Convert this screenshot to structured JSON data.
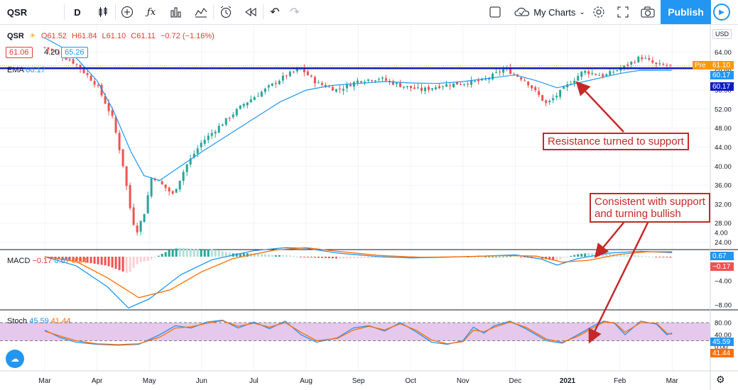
{
  "toolbar": {
    "symbol": "QSR",
    "interval": "D",
    "my_charts": "My Charts",
    "publish": "Publish",
    "icons": [
      "candles-icon",
      "add-icon",
      "fx-icon",
      "bars-icon",
      "indicators-icon",
      "alert-icon",
      "replay-icon",
      "undo-icon",
      "redo-icon",
      "layout-icon",
      "cloud-icon",
      "gear-icon",
      "fullscreen-icon",
      "camera-icon",
      "play-icon"
    ]
  },
  "legend": {
    "symbol": "QSR",
    "o": "O61.52",
    "h": "H61.84",
    "l": "L61.10",
    "c": "C61.11",
    "change": "−0.72 (−1.16%)",
    "bid": "61.06",
    "spread": "4.20",
    "ask": "65.26",
    "ema_label": "EMA",
    "ema_value": "60.17"
  },
  "macd_legend": {
    "label": "MACD",
    "v1": "−0.17",
    "v2": "0.67",
    "v3": "0.84"
  },
  "stoch_legend": {
    "label": "Stoch",
    "v1": "45.59",
    "v2": "41.44"
  },
  "axis": {
    "currency": "USD",
    "price_tag_pre": "Pre",
    "price_tag": "61.10",
    "ema_tag1": "60.17",
    "ema_tag2": "60.17",
    "macd_tag1": "0.67",
    "macd_tag2": "−0.17",
    "stoch_tag1": "45.59",
    "stoch_tag2": "41.44"
  },
  "annotations": {
    "support": "Resistance turned to support",
    "bullish_line1": "Consistent with support",
    "bullish_line2": "and turning bullish"
  },
  "colors": {
    "up": "#26a69a",
    "down": "#ef5350",
    "ema": "#2196f3",
    "resistance": "#0d1bc7",
    "signal": "#ff6d00",
    "stoch_fill": "#e1bee7",
    "annot": "#c62828"
  },
  "chart_data": [
    {
      "type": "candlestick",
      "yticks": [
        "64.00",
        "60.00",
        "56.00",
        "52.00",
        "48.00",
        "44.00",
        "40.00",
        "36.00",
        "32.00",
        "28.00",
        "24.00"
      ],
      "xticks": [
        "Mar",
        "Apr",
        "May",
        "Jun",
        "Jul",
        "Aug",
        "Sep",
        "Oct",
        "Nov",
        "Dec",
        "2021",
        "Feb",
        "Mar"
      ],
      "ylim": [
        22,
        67
      ],
      "resistance_level": 60.6,
      "close_path": [
        [
          0,
          65
        ],
        [
          0.3,
          63.5
        ],
        [
          0.6,
          61.5
        ],
        [
          1.0,
          57
        ],
        [
          1.3,
          50
        ],
        [
          1.5,
          40
        ],
        [
          1.65,
          30
        ],
        [
          1.75,
          26
        ],
        [
          1.9,
          30
        ],
        [
          2.05,
          38
        ],
        [
          2.25,
          36
        ],
        [
          2.45,
          34
        ],
        [
          2.7,
          40
        ],
        [
          3.0,
          45
        ],
        [
          3.4,
          49
        ],
        [
          3.8,
          53
        ],
        [
          4.2,
          56
        ],
        [
          4.6,
          59
        ],
        [
          4.9,
          60.5
        ],
        [
          5.2,
          57.5
        ],
        [
          5.6,
          56
        ],
        [
          6.0,
          58
        ],
        [
          6.4,
          58.5
        ],
        [
          6.8,
          57
        ],
        [
          7.2,
          56
        ],
        [
          7.6,
          57
        ],
        [
          8.0,
          57.5
        ],
        [
          8.4,
          58
        ],
        [
          8.8,
          60.5
        ],
        [
          9.2,
          58
        ],
        [
          9.6,
          53
        ],
        [
          9.9,
          56
        ],
        [
          10.3,
          60
        ],
        [
          10.7,
          59
        ],
        [
          11.1,
          61
        ],
        [
          11.4,
          63
        ],
        [
          11.7,
          61.3
        ],
        [
          12.0,
          61.1
        ]
      ],
      "ema_path": [
        [
          0,
          67
        ],
        [
          0.5,
          64
        ],
        [
          1.0,
          58
        ],
        [
          1.3,
          52
        ],
        [
          1.65,
          43
        ],
        [
          1.9,
          38
        ],
        [
          2.2,
          37
        ],
        [
          2.6,
          40
        ],
        [
          3.0,
          43
        ],
        [
          3.5,
          46.5
        ],
        [
          4.0,
          50
        ],
        [
          4.5,
          53.5
        ],
        [
          5.0,
          56
        ],
        [
          5.5,
          57
        ],
        [
          6.0,
          57.4
        ],
        [
          6.5,
          57.8
        ],
        [
          7.0,
          57.5
        ],
        [
          7.5,
          57.4
        ],
        [
          8.0,
          57.8
        ],
        [
          8.5,
          58.5
        ],
        [
          9.0,
          59.2
        ],
        [
          9.4,
          58
        ],
        [
          9.8,
          56.5
        ],
        [
          10.2,
          57.5
        ],
        [
          10.6,
          58.5
        ],
        [
          11.0,
          59.5
        ],
        [
          11.4,
          60.2
        ],
        [
          12.0,
          60.17
        ]
      ]
    },
    {
      "type": "histogram",
      "name": "MACD",
      "yticks": [
        "4.00",
        "0.00",
        "−4.00",
        "−8.00"
      ],
      "ylim": [
        -9,
        3
      ],
      "macd_path": [
        [
          0,
          0
        ],
        [
          0.6,
          -1.5
        ],
        [
          1.2,
          -5
        ],
        [
          1.6,
          -8.5
        ],
        [
          2.0,
          -7
        ],
        [
          2.6,
          -3
        ],
        [
          3.2,
          -0.5
        ],
        [
          4.0,
          1
        ],
        [
          4.6,
          1.5
        ],
        [
          5.0,
          1.4
        ],
        [
          5.6,
          0.6
        ],
        [
          6.4,
          0
        ],
        [
          7.0,
          -0.2
        ],
        [
          7.6,
          -0.1
        ],
        [
          8.4,
          0.1
        ],
        [
          9.0,
          0.3
        ],
        [
          9.5,
          -0.4
        ],
        [
          9.8,
          -1.4
        ],
        [
          10.2,
          -0.3
        ],
        [
          10.8,
          0.6
        ],
        [
          11.4,
          0.9
        ],
        [
          12.0,
          0.67
        ]
      ],
      "signal_path": [
        [
          0,
          0
        ],
        [
          0.6,
          -0.8
        ],
        [
          1.2,
          -3.5
        ],
        [
          1.8,
          -6.8
        ],
        [
          2.4,
          -5.5
        ],
        [
          3.0,
          -2.5
        ],
        [
          3.6,
          -0.3
        ],
        [
          4.4,
          1.1
        ],
        [
          5.0,
          1.5
        ],
        [
          5.6,
          0.9
        ],
        [
          6.4,
          0.2
        ],
        [
          7.2,
          -0.1
        ],
        [
          8.0,
          0
        ],
        [
          8.8,
          0.2
        ],
        [
          9.4,
          0.1
        ],
        [
          9.9,
          -0.9
        ],
        [
          10.4,
          -0.6
        ],
        [
          11.0,
          0.4
        ],
        [
          11.5,
          0.8
        ],
        [
          12.0,
          0.84
        ]
      ]
    },
    {
      "type": "line",
      "name": "Stoch",
      "yticks": [
        "80.00",
        "40.00",
        "0.00"
      ],
      "ylim": [
        0,
        100
      ],
      "band": [
        20,
        80
      ],
      "k": [
        [
          0,
          55
        ],
        [
          0.3,
          30
        ],
        [
          0.6,
          15
        ],
        [
          1.0,
          8
        ],
        [
          1.4,
          5
        ],
        [
          1.8,
          8
        ],
        [
          2.2,
          40
        ],
        [
          2.5,
          70
        ],
        [
          2.8,
          62
        ],
        [
          3.1,
          82
        ],
        [
          3.4,
          88
        ],
        [
          3.7,
          62
        ],
        [
          4.0,
          82
        ],
        [
          4.3,
          60
        ],
        [
          4.6,
          85
        ],
        [
          4.9,
          40
        ],
        [
          5.2,
          15
        ],
        [
          5.6,
          30
        ],
        [
          5.9,
          62
        ],
        [
          6.2,
          70
        ],
        [
          6.5,
          52
        ],
        [
          6.8,
          80
        ],
        [
          7.1,
          50
        ],
        [
          7.4,
          15
        ],
        [
          7.7,
          8
        ],
        [
          8.0,
          20
        ],
        [
          8.2,
          65
        ],
        [
          8.4,
          45
        ],
        [
          8.6,
          70
        ],
        [
          8.9,
          85
        ],
        [
          9.2,
          60
        ],
        [
          9.6,
          20
        ],
        [
          9.9,
          12
        ],
        [
          10.2,
          40
        ],
        [
          10.5,
          70
        ],
        [
          10.7,
          85
        ],
        [
          10.9,
          78
        ],
        [
          11.1,
          40
        ],
        [
          11.4,
          85
        ],
        [
          11.7,
          75
        ],
        [
          11.9,
          40
        ],
        [
          12.0,
          45.59
        ]
      ],
      "d": [
        [
          0,
          52
        ],
        [
          0.3,
          35
        ],
        [
          0.6,
          20
        ],
        [
          1.0,
          10
        ],
        [
          1.4,
          7
        ],
        [
          1.8,
          10
        ],
        [
          2.2,
          32
        ],
        [
          2.5,
          62
        ],
        [
          2.8,
          66
        ],
        [
          3.1,
          78
        ],
        [
          3.4,
          86
        ],
        [
          3.7,
          68
        ],
        [
          4.0,
          78
        ],
        [
          4.3,
          65
        ],
        [
          4.6,
          80
        ],
        [
          4.9,
          48
        ],
        [
          5.2,
          20
        ],
        [
          5.6,
          28
        ],
        [
          5.9,
          55
        ],
        [
          6.2,
          68
        ],
        [
          6.5,
          56
        ],
        [
          6.8,
          76
        ],
        [
          7.1,
          55
        ],
        [
          7.4,
          22
        ],
        [
          7.7,
          10
        ],
        [
          8.0,
          17
        ],
        [
          8.2,
          55
        ],
        [
          8.4,
          50
        ],
        [
          8.6,
          65
        ],
        [
          8.9,
          82
        ],
        [
          9.2,
          65
        ],
        [
          9.6,
          25
        ],
        [
          9.9,
          15
        ],
        [
          10.2,
          35
        ],
        [
          10.5,
          64
        ],
        [
          10.7,
          82
        ],
        [
          10.9,
          80
        ],
        [
          11.1,
          48
        ],
        [
          11.4,
          80
        ],
        [
          11.7,
          78
        ],
        [
          11.9,
          45
        ],
        [
          12.0,
          41.44
        ]
      ]
    }
  ]
}
